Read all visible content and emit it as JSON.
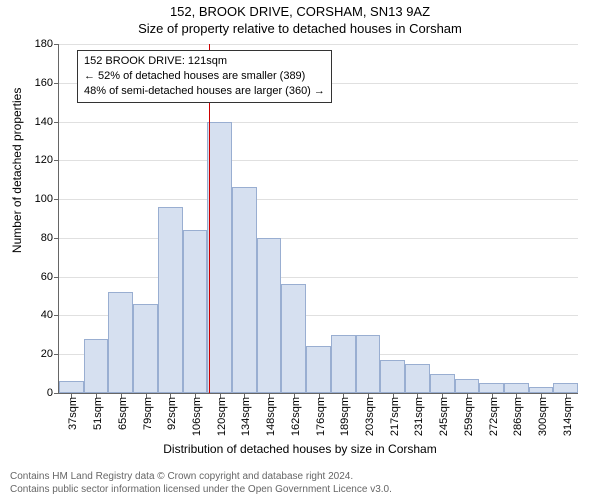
{
  "titles": {
    "line1": "152, BROOK DRIVE, CORSHAM, SN13 9AZ",
    "line2": "Size of property relative to detached houses in Corsham"
  },
  "chart": {
    "type": "histogram",
    "ylabel": "Number of detached properties",
    "xlabel": "Distribution of detached houses by size in Corsham",
    "ylim": [
      0,
      180
    ],
    "ytick_step": 20,
    "yticks": [
      0,
      20,
      40,
      60,
      80,
      100,
      120,
      140,
      160,
      180
    ],
    "grid_color": "#e0e0e0",
    "axis_color": "#666666",
    "bar_fill": "#d6e0f0",
    "bar_border": "#99aed1",
    "background_color": "#ffffff",
    "x_categories": [
      "37sqm",
      "51sqm",
      "65sqm",
      "79sqm",
      "92sqm",
      "106sqm",
      "120sqm",
      "134sqm",
      "148sqm",
      "162sqm",
      "176sqm",
      "189sqm",
      "203sqm",
      "217sqm",
      "231sqm",
      "245sqm",
      "259sqm",
      "272sqm",
      "286sqm",
      "300sqm",
      "314sqm"
    ],
    "values": [
      6,
      28,
      52,
      46,
      96,
      84,
      140,
      106,
      80,
      56,
      24,
      30,
      30,
      17,
      15,
      10,
      7,
      5,
      5,
      3,
      5
    ],
    "reference_line": {
      "value_sqm": 121,
      "color": "#cc0000",
      "bin_index": 6
    },
    "annotation": {
      "lines": [
        "152 BROOK DRIVE: 121sqm",
        "← 52% of detached houses are smaller (389)",
        "48% of semi-detached houses are larger (360) →"
      ],
      "border_color": "#333333",
      "background": "#ffffff",
      "fontsize": 11
    },
    "label_fontsize": 12,
    "tick_fontsize": 11
  },
  "footer": {
    "line1": "Contains HM Land Registry data © Crown copyright and database right 2024.",
    "line2": "Contains public sector information licensed under the Open Government Licence v3.0."
  }
}
